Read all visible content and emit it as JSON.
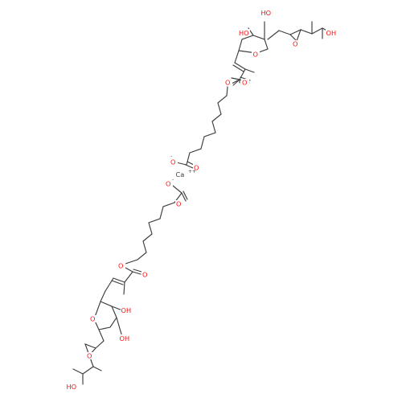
{
  "labels": {
    "calcium": "Ca",
    "calcium_charge": "++",
    "anion_charge": "-",
    "oxygen": "O",
    "hydroxyl": "OH",
    "hydroxyl_left": "HO"
  },
  "colors": {
    "bond": "#3d3d3d",
    "oxygen": "#ff0d0d",
    "background": "#ffffff"
  }
}
